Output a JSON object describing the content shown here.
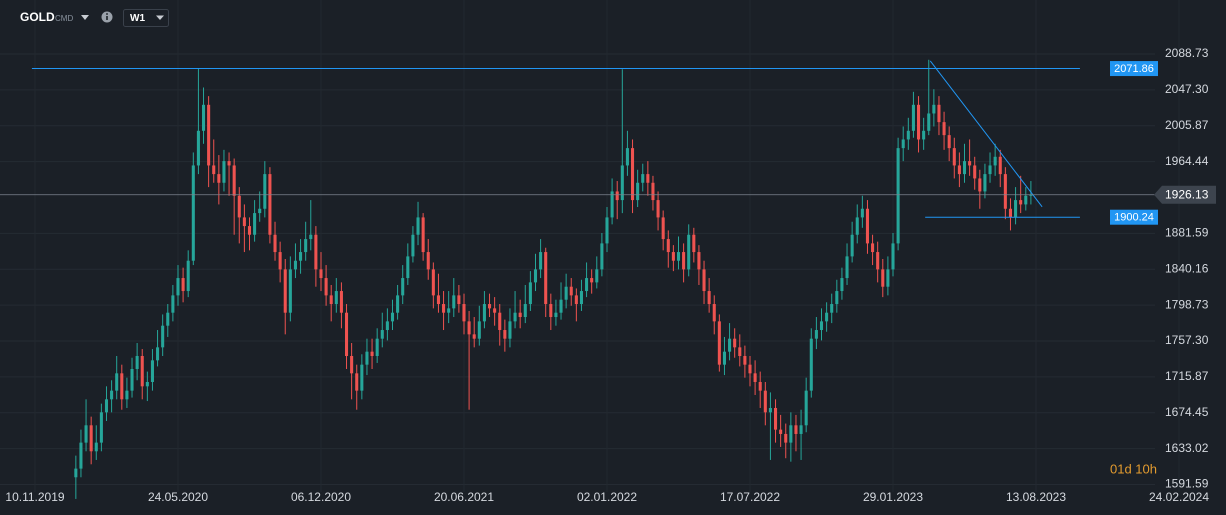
{
  "chart_data": {
    "type": "candlestick",
    "symbol": "GOLD",
    "symbol_tag": "CMD",
    "timeframe": "W1",
    "countdown": "01d 10h",
    "up_color": "#26a69a",
    "down_color": "#ef5350",
    "grid": true,
    "xlim": [
      -6.85,
      219.3
    ],
    "ylim": [
      1583,
      2151
    ],
    "xticks": [
      {
        "value": 0,
        "label": "10.11.2019"
      },
      {
        "value": 28,
        "label": "24.05.2020"
      },
      {
        "value": 56,
        "label": "06.12.2020"
      },
      {
        "value": 84,
        "label": "20.06.2021"
      },
      {
        "value": 112,
        "label": "02.01.2022"
      },
      {
        "value": 140,
        "label": "17.07.2022"
      },
      {
        "value": 168,
        "label": "29.01.2023"
      },
      {
        "value": 196,
        "label": "13.08.2023"
      },
      {
        "value": 224,
        "label": "24.02.2024"
      }
    ],
    "yticks": [
      2088.73,
      {
        "value": 2047.3,
        "label": "2047.30"
      },
      2005.87,
      1964.44,
      1881.59,
      1840.16,
      1798.73,
      {
        "value": 1757.3,
        "label": "1757.30"
      },
      1715.87,
      1674.45,
      1633.02,
      1591.59
    ],
    "last_price": 1926.13,
    "hlines": [
      {
        "value": 2071.86,
        "x": [
          -0.6,
          204.6
        ],
        "color": "#2196f3"
      },
      {
        "value": 1900.24,
        "x": [
          174.3,
          204.6
        ],
        "color": "#2196f3"
      }
    ],
    "trendline": {
      "x": [
        175.3,
        197.2
      ],
      "y": [
        2080.7,
        1912.2
      ],
      "color": "#2196f3"
    },
    "x": [
      8,
      9,
      10,
      11,
      12,
      13,
      14,
      15,
      16,
      17,
      18,
      19,
      20,
      21,
      22,
      23,
      24,
      25,
      26,
      27,
      28,
      29,
      30,
      31,
      32,
      33,
      34,
      35,
      36,
      37,
      38,
      39,
      40,
      41,
      42,
      43,
      44,
      45,
      46,
      47,
      48,
      49,
      50,
      51,
      52,
      53,
      54,
      55,
      56,
      57,
      58,
      59,
      60,
      61,
      62,
      63,
      64,
      65,
      66,
      67,
      68,
      69,
      70,
      71,
      72,
      73,
      74,
      75,
      76,
      77,
      78,
      79,
      80,
      81,
      82,
      83,
      84,
      85,
      86,
      87,
      88,
      89,
      90,
      91,
      92,
      93,
      94,
      95,
      96,
      97,
      98,
      99,
      100,
      101,
      102,
      103,
      104,
      105,
      106,
      107,
      108,
      109,
      110,
      111,
      112,
      113,
      114,
      115,
      116,
      117,
      118,
      119,
      120,
      121,
      122,
      123,
      124,
      125,
      126,
      127,
      128,
      129,
      130,
      131,
      132,
      133,
      134,
      135,
      136,
      137,
      138,
      139,
      140,
      141,
      142,
      143,
      144,
      145,
      146,
      147,
      148,
      149,
      150,
      151,
      152,
      153,
      154,
      155,
      156,
      157,
      158,
      159,
      160,
      161,
      162,
      163,
      164,
      165,
      166,
      167,
      168,
      169,
      170,
      171,
      172,
      173,
      174,
      175,
      176,
      177,
      178,
      179,
      180,
      181,
      182,
      183,
      184,
      185,
      186,
      187,
      188,
      189,
      190,
      191,
      192,
      193,
      194,
      195
    ],
    "candles": [
      [
        1600,
        1625,
        1575,
        1610
      ],
      [
        1610,
        1655,
        1600,
        1640
      ],
      [
        1640,
        1690,
        1630,
        1660
      ],
      [
        1660,
        1670,
        1615,
        1630
      ],
      [
        1630,
        1660,
        1620,
        1640
      ],
      [
        1640,
        1685,
        1630,
        1675
      ],
      [
        1675,
        1705,
        1665,
        1690
      ],
      [
        1690,
        1712,
        1675,
        1700
      ],
      [
        1700,
        1740,
        1690,
        1720
      ],
      [
        1720,
        1730,
        1678,
        1690
      ],
      [
        1690,
        1715,
        1680,
        1700
      ],
      [
        1700,
        1738,
        1692,
        1725
      ],
      [
        1725,
        1755,
        1712,
        1740
      ],
      [
        1740,
        1748,
        1690,
        1705
      ],
      [
        1705,
        1722,
        1688,
        1710
      ],
      [
        1710,
        1748,
        1700,
        1735
      ],
      [
        1735,
        1770,
        1728,
        1750
      ],
      [
        1750,
        1788,
        1740,
        1775
      ],
      [
        1775,
        1800,
        1762,
        1790
      ],
      [
        1790,
        1822,
        1780,
        1810
      ],
      [
        1810,
        1845,
        1798,
        1830
      ],
      [
        1830,
        1842,
        1802,
        1815
      ],
      [
        1815,
        1862,
        1808,
        1850
      ],
      [
        1850,
        1975,
        1845,
        1960
      ],
      [
        1960,
        2072,
        1950,
        2000
      ],
      [
        2000,
        2050,
        1985,
        2030
      ],
      [
        2030,
        2040,
        1935,
        1960
      ],
      [
        1960,
        1990,
        1940,
        1950
      ],
      [
        1950,
        1972,
        1915,
        1940
      ],
      [
        1940,
        1978,
        1930,
        1965
      ],
      [
        1965,
        1975,
        1925,
        1960
      ],
      [
        1960,
        1968,
        1880,
        1925
      ],
      [
        1925,
        1935,
        1870,
        1900
      ],
      [
        1900,
        1915,
        1860,
        1890
      ],
      [
        1890,
        1900,
        1862,
        1880
      ],
      [
        1880,
        1920,
        1872,
        1905
      ],
      [
        1905,
        1930,
        1895,
        1910
      ],
      [
        1910,
        1965,
        1900,
        1950
      ],
      [
        1950,
        1958,
        1870,
        1880
      ],
      [
        1880,
        1895,
        1850,
        1860
      ],
      [
        1860,
        1872,
        1825,
        1840
      ],
      [
        1840,
        1852,
        1765,
        1790
      ],
      [
        1790,
        1855,
        1780,
        1840
      ],
      [
        1840,
        1870,
        1830,
        1850
      ],
      [
        1850,
        1875,
        1835,
        1860
      ],
      [
        1860,
        1895,
        1850,
        1875
      ],
      [
        1875,
        1920,
        1862,
        1880
      ],
      [
        1880,
        1890,
        1820,
        1840
      ],
      [
        1840,
        1860,
        1815,
        1830
      ],
      [
        1830,
        1845,
        1798,
        1810
      ],
      [
        1810,
        1822,
        1780,
        1800
      ],
      [
        1800,
        1830,
        1790,
        1815
      ],
      [
        1815,
        1825,
        1772,
        1790
      ],
      [
        1790,
        1800,
        1725,
        1740
      ],
      [
        1740,
        1755,
        1690,
        1720
      ],
      [
        1720,
        1730,
        1678,
        1700
      ],
      [
        1700,
        1742,
        1690,
        1730
      ],
      [
        1730,
        1760,
        1718,
        1745
      ],
      [
        1745,
        1760,
        1725,
        1740
      ],
      [
        1740,
        1772,
        1732,
        1760
      ],
      [
        1760,
        1790,
        1750,
        1770
      ],
      [
        1770,
        1795,
        1758,
        1780
      ],
      [
        1780,
        1805,
        1770,
        1790
      ],
      [
        1790,
        1822,
        1782,
        1810
      ],
      [
        1810,
        1845,
        1800,
        1830
      ],
      [
        1830,
        1870,
        1822,
        1855
      ],
      [
        1855,
        1890,
        1848,
        1880
      ],
      [
        1880,
        1918,
        1868,
        1900
      ],
      [
        1900,
        1905,
        1850,
        1860
      ],
      [
        1860,
        1875,
        1828,
        1840
      ],
      [
        1840,
        1848,
        1795,
        1810
      ],
      [
        1810,
        1835,
        1790,
        1800
      ],
      [
        1800,
        1815,
        1770,
        1790
      ],
      [
        1790,
        1815,
        1778,
        1795
      ],
      [
        1795,
        1830,
        1785,
        1810
      ],
      [
        1810,
        1822,
        1790,
        1800
      ],
      [
        1800,
        1812,
        1765,
        1780
      ],
      [
        1780,
        1792,
        1678,
        1765
      ],
      [
        1765,
        1785,
        1750,
        1760
      ],
      [
        1760,
        1798,
        1752,
        1780
      ],
      [
        1780,
        1815,
        1772,
        1800
      ],
      [
        1800,
        1812,
        1785,
        1795
      ],
      [
        1795,
        1808,
        1775,
        1790
      ],
      [
        1790,
        1800,
        1752,
        1770
      ],
      [
        1770,
        1782,
        1745,
        1760
      ],
      [
        1760,
        1795,
        1750,
        1780
      ],
      [
        1780,
        1815,
        1772,
        1790
      ],
      [
        1790,
        1805,
        1772,
        1785
      ],
      [
        1785,
        1822,
        1778,
        1800
      ],
      [
        1800,
        1838,
        1792,
        1825
      ],
      [
        1825,
        1858,
        1815,
        1840
      ],
      [
        1840,
        1875,
        1830,
        1860
      ],
      [
        1860,
        1865,
        1785,
        1800
      ],
      [
        1800,
        1812,
        1770,
        1785
      ],
      [
        1785,
        1805,
        1775,
        1790
      ],
      [
        1790,
        1825,
        1782,
        1805
      ],
      [
        1805,
        1835,
        1795,
        1820
      ],
      [
        1820,
        1830,
        1798,
        1810
      ],
      [
        1810,
        1818,
        1780,
        1800
      ],
      [
        1800,
        1828,
        1792,
        1815
      ],
      [
        1815,
        1848,
        1808,
        1830
      ],
      [
        1830,
        1840,
        1812,
        1825
      ],
      [
        1825,
        1855,
        1818,
        1840
      ],
      [
        1840,
        1882,
        1832,
        1870
      ],
      [
        1870,
        1912,
        1860,
        1900
      ],
      [
        1900,
        1945,
        1892,
        1930
      ],
      [
        1930,
        1942,
        1898,
        1920
      ],
      [
        1920,
        2071,
        1905,
        1960
      ],
      [
        1960,
        2000,
        1948,
        1980
      ],
      [
        1980,
        1990,
        1905,
        1920
      ],
      [
        1920,
        1955,
        1912,
        1940
      ],
      [
        1940,
        1962,
        1930,
        1950
      ],
      [
        1950,
        1965,
        1925,
        1940
      ],
      [
        1940,
        1948,
        1908,
        1920
      ],
      [
        1920,
        1930,
        1885,
        1900
      ],
      [
        1900,
        1908,
        1862,
        1875
      ],
      [
        1875,
        1885,
        1842,
        1860
      ],
      [
        1860,
        1868,
        1838,
        1850
      ],
      [
        1850,
        1878,
        1840,
        1860
      ],
      [
        1860,
        1870,
        1825,
        1840
      ],
      [
        1840,
        1892,
        1832,
        1880
      ],
      [
        1880,
        1888,
        1848,
        1860
      ],
      [
        1860,
        1868,
        1822,
        1840
      ],
      [
        1840,
        1850,
        1800,
        1815
      ],
      [
        1815,
        1830,
        1790,
        1800
      ],
      [
        1800,
        1810,
        1765,
        1780
      ],
      [
        1780,
        1788,
        1722,
        1730
      ],
      [
        1730,
        1762,
        1718,
        1745
      ],
      [
        1745,
        1778,
        1735,
        1760
      ],
      [
        1760,
        1772,
        1738,
        1750
      ],
      [
        1750,
        1765,
        1728,
        1740
      ],
      [
        1740,
        1752,
        1715,
        1730
      ],
      [
        1730,
        1740,
        1705,
        1720
      ],
      [
        1720,
        1735,
        1695,
        1710
      ],
      [
        1710,
        1722,
        1680,
        1700
      ],
      [
        1700,
        1710,
        1660,
        1675
      ],
      [
        1675,
        1698,
        1620,
        1680
      ],
      [
        1680,
        1690,
        1640,
        1655
      ],
      [
        1655,
        1672,
        1635,
        1650
      ],
      [
        1650,
        1662,
        1622,
        1640
      ],
      [
        1640,
        1675,
        1618,
        1660
      ],
      [
        1660,
        1672,
        1630,
        1650
      ],
      [
        1650,
        1678,
        1620,
        1660
      ],
      [
        1660,
        1715,
        1652,
        1700
      ],
      [
        1700,
        1772,
        1692,
        1760
      ],
      [
        1760,
        1785,
        1748,
        1770
      ],
      [
        1770,
        1795,
        1758,
        1780
      ],
      [
        1780,
        1802,
        1768,
        1790
      ],
      [
        1790,
        1812,
        1778,
        1800
      ],
      [
        1800,
        1828,
        1790,
        1815
      ],
      [
        1815,
        1842,
        1805,
        1830
      ],
      [
        1830,
        1870,
        1822,
        1855
      ],
      [
        1855,
        1895,
        1848,
        1880
      ],
      [
        1880,
        1915,
        1870,
        1900
      ],
      [
        1900,
        1925,
        1888,
        1910
      ],
      [
        1910,
        1920,
        1858,
        1870
      ],
      [
        1870,
        1880,
        1845,
        1860
      ],
      [
        1860,
        1872,
        1825,
        1840
      ],
      [
        1840,
        1852,
        1808,
        1820
      ],
      [
        1820,
        1855,
        1810,
        1840
      ],
      [
        1840,
        1882,
        1832,
        1870
      ],
      [
        1870,
        1992,
        1862,
        1980
      ],
      [
        1980,
        2005,
        1965,
        1990
      ],
      [
        1990,
        2015,
        1978,
        2000
      ],
      [
        2000,
        2045,
        1992,
        2030
      ],
      [
        2030,
        2040,
        1975,
        1990
      ],
      [
        1990,
        2015,
        1978,
        2000
      ],
      [
        2000,
        2082,
        1995,
        2020
      ],
      [
        2020,
        2048,
        2005,
        2030
      ],
      [
        2030,
        2040,
        1995,
        2010
      ],
      [
        2010,
        2022,
        1978,
        1995
      ],
      [
        1995,
        2005,
        1965,
        1980
      ],
      [
        1980,
        1992,
        1945,
        1960
      ],
      [
        1960,
        1975,
        1935,
        1950
      ],
      [
        1950,
        1985,
        1940,
        1965
      ],
      [
        1965,
        1990,
        1948,
        1960
      ],
      [
        1960,
        1970,
        1932,
        1945
      ],
      [
        1945,
        1955,
        1910,
        1930
      ],
      [
        1930,
        1962,
        1922,
        1950
      ],
      [
        1950,
        1975,
        1940,
        1960
      ],
      [
        1960,
        1985,
        1948,
        1970
      ],
      [
        1970,
        1978,
        1935,
        1950
      ],
      [
        1950,
        1958,
        1898,
        1910
      ],
      [
        1910,
        1922,
        1885,
        1900
      ],
      [
        1900,
        1935,
        1892,
        1920
      ],
      [
        1920,
        1948,
        1905,
        1915
      ],
      [
        1915,
        1935,
        1908,
        1925
      ],
      [
        1925,
        1942,
        1915,
        1926.13
      ]
    ]
  }
}
